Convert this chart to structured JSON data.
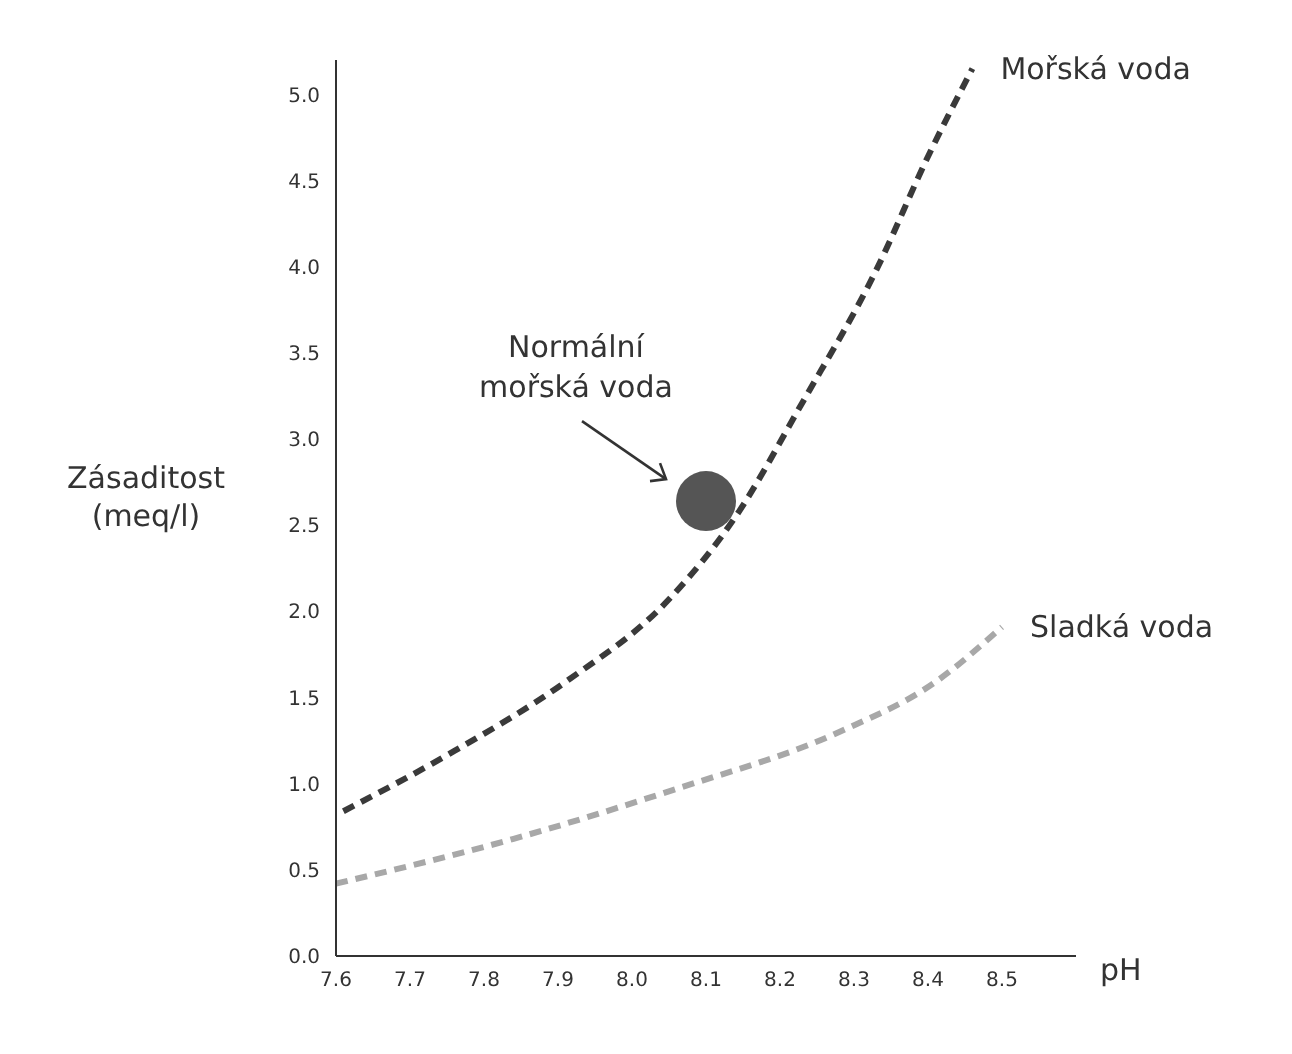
{
  "chart_data": {
    "type": "line",
    "xlabel": "pH",
    "ylabel": "Zásaditost (meq/l)",
    "xlim": [
      7.6,
      8.6
    ],
    "xticks": [
      {
        "value": 7.6,
        "label": "7.6"
      },
      {
        "value": 7.7,
        "label": "7.7"
      },
      {
        "value": 7.8,
        "label": "7.8"
      },
      {
        "value": 7.9,
        "label": "7.9"
      },
      {
        "value": 8.0,
        "label": "8.0"
      },
      {
        "value": 8.1,
        "label": "8.1"
      },
      {
        "value": 8.2,
        "label": "8.2"
      },
      {
        "value": 8.3,
        "label": "8.3"
      },
      {
        "value": 8.4,
        "label": "8.4"
      },
      {
        "value": 8.5,
        "label": "8.5"
      }
    ],
    "ylim": [
      0,
      5.2
    ],
    "yticks": [
      {
        "value": 0,
        "label": "0.0"
      },
      {
        "value": 0.5,
        "label": "0.5"
      },
      {
        "value": 1,
        "label": "1.0"
      },
      {
        "value": 1.5,
        "label": "1.5"
      },
      {
        "value": 2,
        "label": "2.0"
      },
      {
        "value": 2.5,
        "label": "2.5"
      },
      {
        "value": 3,
        "label": "3.0"
      },
      {
        "value": 3.5,
        "label": "3.5"
      },
      {
        "value": 4,
        "label": "4.0"
      },
      {
        "value": 4.5,
        "label": "4.5"
      },
      {
        "value": 5,
        "label": "5.0"
      }
    ],
    "grid": false,
    "legend": false,
    "marker": "none",
    "line_style": "dashed",
    "series": [
      {
        "name": "Mořská voda",
        "color": "#3a3a3a",
        "x": [
          7.61,
          7.76,
          7.91,
          8.05,
          8.14,
          8.23,
          8.33,
          8.4,
          8.46
        ],
        "values": [
          0.84,
          1.19,
          1.59,
          2.07,
          2.55,
          3.21,
          3.98,
          4.64,
          5.15
        ]
      },
      {
        "name": "Sladká voda",
        "color": "#a8a8a8",
        "x": [
          7.6,
          7.84,
          8.06,
          8.28,
          8.41,
          8.5
        ],
        "values": [
          0.42,
          0.68,
          0.97,
          1.3,
          1.59,
          1.91
        ]
      },
      {
        "type": "scatter",
        "marker": "circle",
        "color": "#555555",
        "x": [
          8.1
        ],
        "values": [
          2.64
        ]
      }
    ],
    "annotations": [
      "Normální mořská voda"
    ]
  }
}
